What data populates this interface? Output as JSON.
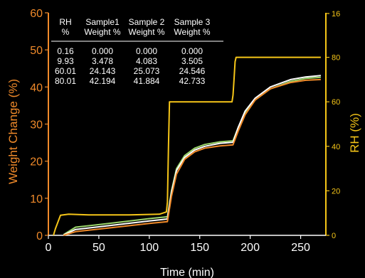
{
  "chart_data": {
    "type": "line",
    "xlabel": "Time (min)",
    "ylabel_left": "Weight Change (%)",
    "ylabel_right": "RH (%)",
    "xlim": [
      0,
      275
    ],
    "ylim_left": [
      0,
      60
    ],
    "ylim_right": [
      0,
      100
    ],
    "x_ticks": [
      0,
      50,
      100,
      150,
      200,
      250
    ],
    "y_ticks_left": [
      0,
      10,
      20,
      30,
      40,
      50,
      60
    ],
    "y_ticks_right": [
      0,
      20,
      40,
      60,
      80
    ],
    "y_ticks_right_extra": [
      16
    ],
    "grid": false,
    "series": [
      {
        "name": "",
        "axis": "right",
        "color": "#f5c518",
        "x": [
          5,
          7,
          12,
          20,
          40,
          80,
          110,
          117,
          118,
          119,
          120,
          150,
          182,
          183,
          184,
          185,
          186,
          190,
          230,
          270
        ],
        "y": [
          0,
          3,
          9,
          9.5,
          9.2,
          9.2,
          9.5,
          10.5,
          15,
          40,
          60,
          60,
          60,
          63,
          70,
          78,
          80,
          80,
          80,
          80
        ]
      },
      {
        "name": "",
        "axis": "left",
        "color": "#9bd66b",
        "x": [
          15,
          27,
          60,
          100,
          118,
          122,
          127,
          135,
          145,
          155,
          170,
          183,
          188,
          195,
          205,
          220,
          240,
          255,
          270
        ],
        "y": [
          0.2,
          2.2,
          3.2,
          4.5,
          5.0,
          12,
          18,
          21.5,
          23.5,
          24.5,
          25.2,
          25.5,
          29,
          33,
          36.5,
          39.5,
          41.5,
          42.3,
          42.6
        ]
      },
      {
        "name": "",
        "axis": "left",
        "color": "#ffffff",
        "x": [
          15,
          27,
          60,
          100,
          118,
          122,
          127,
          135,
          145,
          155,
          170,
          183,
          188,
          195,
          205,
          220,
          240,
          255,
          270
        ],
        "y": [
          0.1,
          1.6,
          2.6,
          3.9,
          4.4,
          11.5,
          17.5,
          21,
          23,
          24,
          24.8,
          25.1,
          29,
          33.5,
          37,
          40,
          42,
          42.7,
          43.1
        ]
      },
      {
        "name": "",
        "axis": "left",
        "color": "#f08a2a",
        "x": [
          15,
          27,
          60,
          100,
          118,
          122,
          127,
          135,
          145,
          155,
          170,
          183,
          188,
          195,
          205,
          220,
          240,
          255,
          270
        ],
        "y": [
          0,
          1.0,
          2.0,
          3.2,
          3.7,
          10.5,
          16.5,
          20.5,
          22.5,
          23.5,
          24.1,
          24.4,
          28,
          32.5,
          36.5,
          39.5,
          41.2,
          41.8,
          42.0
        ]
      }
    ]
  },
  "table": {
    "headers": [
      [
        "RH",
        "%"
      ],
      [
        "Sample1",
        "Weight %"
      ],
      [
        "Sample 2",
        "Weight %"
      ],
      [
        "Sample 3",
        "Weight %"
      ]
    ],
    "rows": [
      [
        "0.16",
        "0.000",
        "0.000",
        "0.000"
      ],
      [
        "9.93",
        "3.478",
        "4.083",
        "3.505"
      ],
      [
        "60.01",
        "24.143",
        "25.073",
        "24.546"
      ],
      [
        "80.01",
        "42.194",
        "41.884",
        "42.733"
      ]
    ]
  },
  "colors": {
    "background": "#000000",
    "left_axis": "#f08a2a",
    "right_axis": "#f5c518",
    "x_axis": "#ffffff"
  }
}
